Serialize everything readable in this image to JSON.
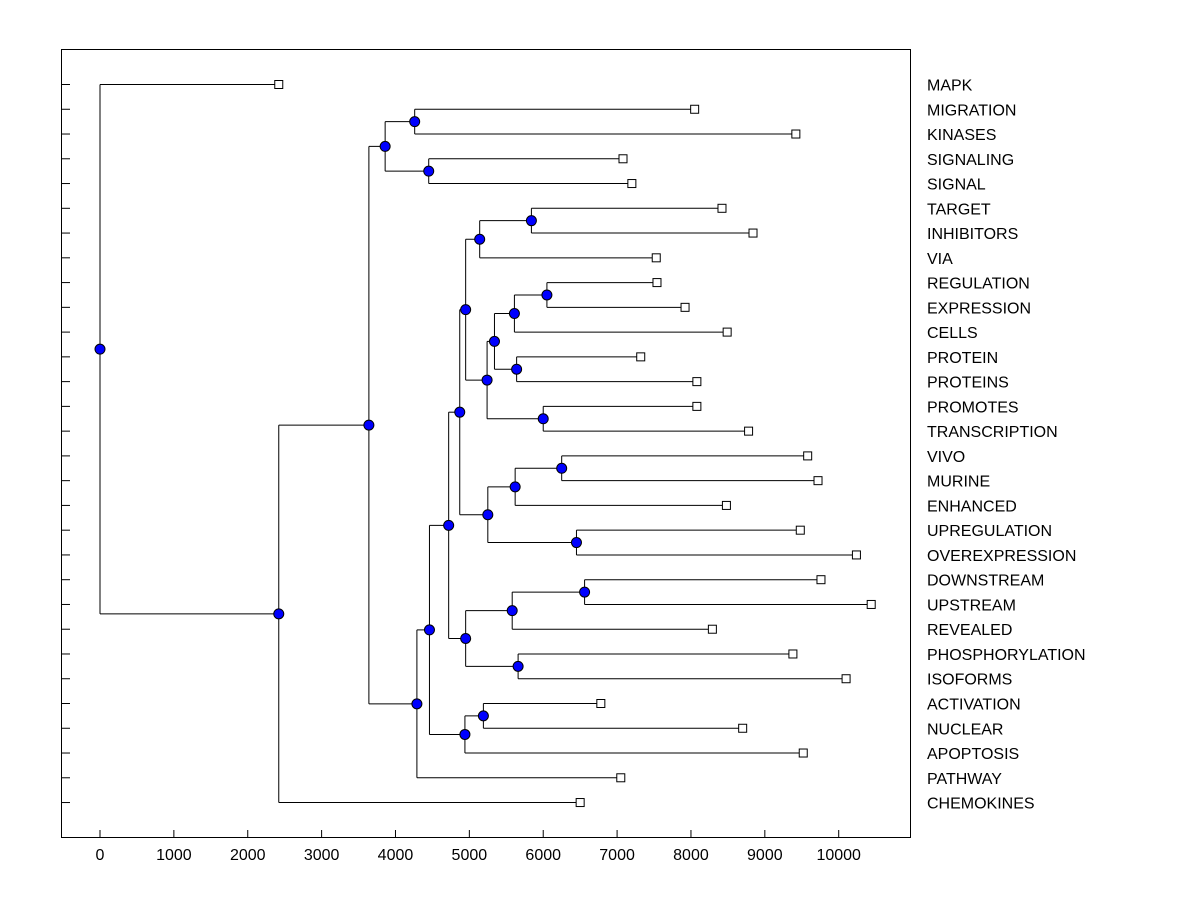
{
  "chart_data": {
    "type": "dendrogram",
    "title": "",
    "xlabel": "",
    "ylabel": "",
    "xlim": [
      -500,
      11000
    ],
    "x_ticks": [
      0,
      1000,
      2000,
      3000,
      4000,
      5000,
      6000,
      7000,
      8000,
      9000,
      10000
    ],
    "grid": false,
    "colors": {
      "node": "#0000ff",
      "leaf": "#ffffff",
      "line": "#000000"
    },
    "leaves": [
      {
        "label": "MAPK",
        "x": 2420
      },
      {
        "label": "MIGRATION",
        "x": 8050
      },
      {
        "label": "KINASES",
        "x": 9420
      },
      {
        "label": "SIGNALING",
        "x": 7080
      },
      {
        "label": "SIGNAL",
        "x": 7200
      },
      {
        "label": "TARGET",
        "x": 8420
      },
      {
        "label": "INHIBITORS",
        "x": 8840
      },
      {
        "label": "VIA",
        "x": 7530
      },
      {
        "label": "REGULATION",
        "x": 7540
      },
      {
        "label": "EXPRESSION",
        "x": 7920
      },
      {
        "label": "CELLS",
        "x": 8490
      },
      {
        "label": "PROTEIN",
        "x": 7320
      },
      {
        "label": "PROTEINS",
        "x": 8080
      },
      {
        "label": "PROMOTES",
        "x": 8080
      },
      {
        "label": "TRANSCRIPTION",
        "x": 8780
      },
      {
        "label": "VIVO",
        "x": 9580
      },
      {
        "label": "MURINE",
        "x": 9720
      },
      {
        "label": "ENHANCED",
        "x": 8480
      },
      {
        "label": "UPREGULATION",
        "x": 9480
      },
      {
        "label": "OVEREXPRESSION",
        "x": 10240
      },
      {
        "label": "DOWNSTREAM",
        "x": 9760
      },
      {
        "label": "UPSTREAM",
        "x": 10440
      },
      {
        "label": "REVEALED",
        "x": 8290
      },
      {
        "label": "PHOSPHORYLATION",
        "x": 9380
      },
      {
        "label": "ISOFORMS",
        "x": 10100
      },
      {
        "label": "ACTIVATION",
        "x": 6780
      },
      {
        "label": "NUCLEAR",
        "x": 8700
      },
      {
        "label": "APOPTOSIS",
        "x": 9520
      },
      {
        "label": "PATHWAY",
        "x": 7050
      },
      {
        "label": "CHEMOKINES",
        "x": 6500
      }
    ],
    "merges": [
      {
        "id": "n1",
        "x": 4260,
        "children": [
          "MIGRATION",
          "KINASES"
        ]
      },
      {
        "id": "n2",
        "x": 4450,
        "children": [
          "SIGNALING",
          "SIGNAL"
        ]
      },
      {
        "id": "n3",
        "x": 3860,
        "children": [
          "n1",
          "n2"
        ]
      },
      {
        "id": "n4",
        "x": 5840,
        "children": [
          "TARGET",
          "INHIBITORS"
        ]
      },
      {
        "id": "n5",
        "x": 5140,
        "children": [
          "n4",
          "VIA"
        ]
      },
      {
        "id": "n6",
        "x": 6050,
        "children": [
          "REGULATION",
          "EXPRESSION"
        ]
      },
      {
        "id": "n7",
        "x": 5610,
        "children": [
          "n6",
          "CELLS"
        ]
      },
      {
        "id": "n8",
        "x": 5640,
        "children": [
          "PROTEIN",
          "PROTEINS"
        ]
      },
      {
        "id": "n9",
        "x": 5340,
        "children": [
          "n7",
          "n8"
        ]
      },
      {
        "id": "n10",
        "x": 6000,
        "children": [
          "PROMOTES",
          "TRANSCRIPTION"
        ]
      },
      {
        "id": "n11",
        "x": 5240,
        "children": [
          "n9",
          "n10"
        ]
      },
      {
        "id": "n12",
        "x": 4950,
        "children": [
          "n5",
          "n11"
        ]
      },
      {
        "id": "n13",
        "x": 6250,
        "children": [
          "VIVO",
          "MURINE"
        ]
      },
      {
        "id": "n14",
        "x": 5620,
        "children": [
          "n13",
          "ENHANCED"
        ]
      },
      {
        "id": "n15",
        "x": 6450,
        "children": [
          "UPREGULATION",
          "OVEREXPRESSION"
        ]
      },
      {
        "id": "n16",
        "x": 5250,
        "children": [
          "n14",
          "n15"
        ]
      },
      {
        "id": "n17",
        "x": 4870,
        "children": [
          "n12",
          "n16"
        ]
      },
      {
        "id": "n18",
        "x": 6560,
        "children": [
          "DOWNSTREAM",
          "UPSTREAM"
        ]
      },
      {
        "id": "n19",
        "x": 5580,
        "children": [
          "n18",
          "REVEALED"
        ]
      },
      {
        "id": "n20",
        "x": 5660,
        "children": [
          "PHOSPHORYLATION",
          "ISOFORMS"
        ]
      },
      {
        "id": "n21",
        "x": 4950,
        "children": [
          "n19",
          "n20"
        ]
      },
      {
        "id": "n22",
        "x": 4720,
        "children": [
          "n17",
          "n21"
        ]
      },
      {
        "id": "n23",
        "x": 5190,
        "children": [
          "ACTIVATION",
          "NUCLEAR"
        ]
      },
      {
        "id": "n24",
        "x": 4940,
        "children": [
          "n23",
          "APOPTOSIS"
        ]
      },
      {
        "id": "n25",
        "x": 4460,
        "children": [
          "n22",
          "n24"
        ]
      },
      {
        "id": "n26",
        "x": 4290,
        "children": [
          "n25",
          "PATHWAY"
        ]
      },
      {
        "id": "n27",
        "x": 3640,
        "children": [
          "n3",
          "n26"
        ]
      },
      {
        "id": "n28",
        "x": 2420,
        "children": [
          "n27",
          "CHEMOKINES"
        ]
      },
      {
        "id": "n29",
        "x": 0,
        "children": [
          "MAPK",
          "n28"
        ]
      }
    ]
  }
}
